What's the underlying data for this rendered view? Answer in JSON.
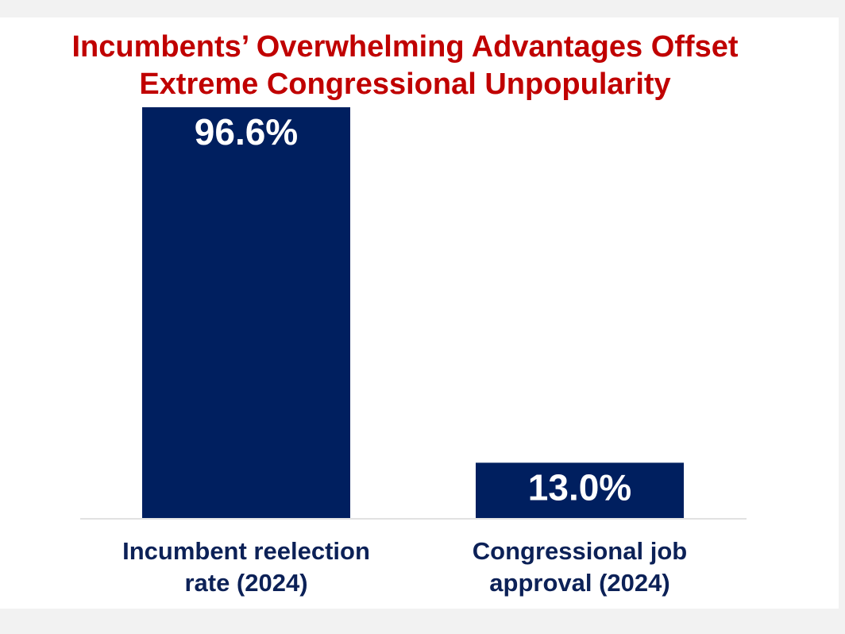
{
  "chart_data": {
    "type": "bar",
    "title_lines": [
      "Incumbents’ Overwhelming Advantages Offset",
      "Extreme Congressional Unpopularity"
    ],
    "categories": [
      [
        "Incumbent reelection",
        "rate (2024)"
      ],
      [
        "Congressional job",
        "approval (2024)"
      ]
    ],
    "values": [
      96.6,
      13.0
    ],
    "data_labels": [
      "96.6%",
      "13.0%"
    ],
    "ylim": [
      0,
      100
    ],
    "grid": false,
    "legend": "none",
    "colors": {
      "bar": "#001f5f",
      "title": "#c00000",
      "category_label": "#0c2157"
    }
  }
}
